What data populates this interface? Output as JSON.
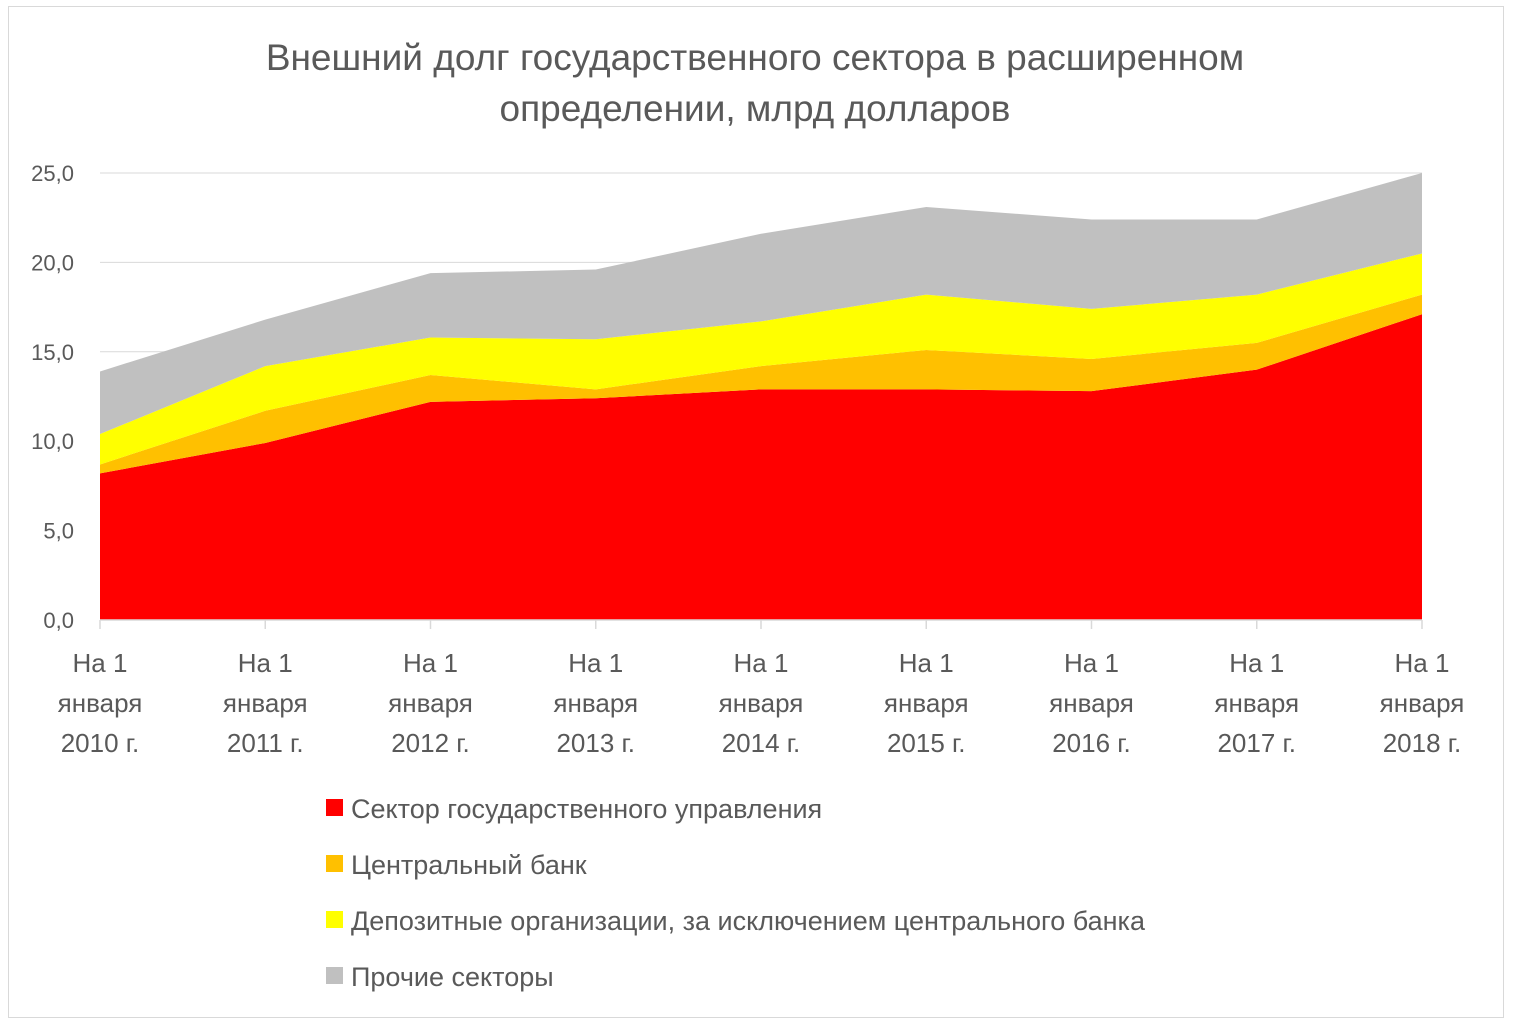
{
  "chart_data": {
    "type": "area",
    "stacked": true,
    "title_lines": [
      "Внешний долг государственного сектора в расширенном",
      "определении, млрд долларов"
    ],
    "categories": [
      [
        "На 1",
        "января",
        "2010 г."
      ],
      [
        "На 1",
        "января",
        "2011 г."
      ],
      [
        "На 1",
        "января",
        "2012 г."
      ],
      [
        "На 1",
        "января",
        "2013 г."
      ],
      [
        "На 1",
        "января",
        "2014 г."
      ],
      [
        "На 1",
        "января",
        "2015 г."
      ],
      [
        "На 1",
        "января",
        "2016 г."
      ],
      [
        "На 1",
        "января",
        "2017 г."
      ],
      [
        "На 1",
        "января",
        "2018 г."
      ]
    ],
    "yticks": [
      "0,0",
      "5,0",
      "10,0",
      "15,0",
      "20,0",
      "25,0"
    ],
    "ylim": [
      0,
      25
    ],
    "grid": true,
    "legend_position": "bottom",
    "series": [
      {
        "name": "Сектор государственного управления",
        "color": "#ff0000",
        "values": [
          8.2,
          9.9,
          12.2,
          12.4,
          12.9,
          12.9,
          12.8,
          14.0,
          17.1
        ]
      },
      {
        "name": "Центральный банк",
        "color": "#ffc000",
        "values": [
          0.5,
          1.8,
          1.5,
          0.5,
          1.3,
          2.2,
          1.8,
          1.5,
          1.1
        ]
      },
      {
        "name": "Депозитные организации, за исключением центрального банка",
        "color": "#ffff00",
        "values": [
          1.7,
          2.5,
          2.1,
          2.8,
          2.5,
          3.1,
          2.8,
          2.7,
          2.3
        ]
      },
      {
        "name": "Прочие секторы",
        "color": "#c0c0c0",
        "values": [
          3.5,
          2.6,
          3.6,
          3.9,
          4.9,
          4.9,
          5.0,
          4.2,
          4.5
        ]
      }
    ]
  }
}
